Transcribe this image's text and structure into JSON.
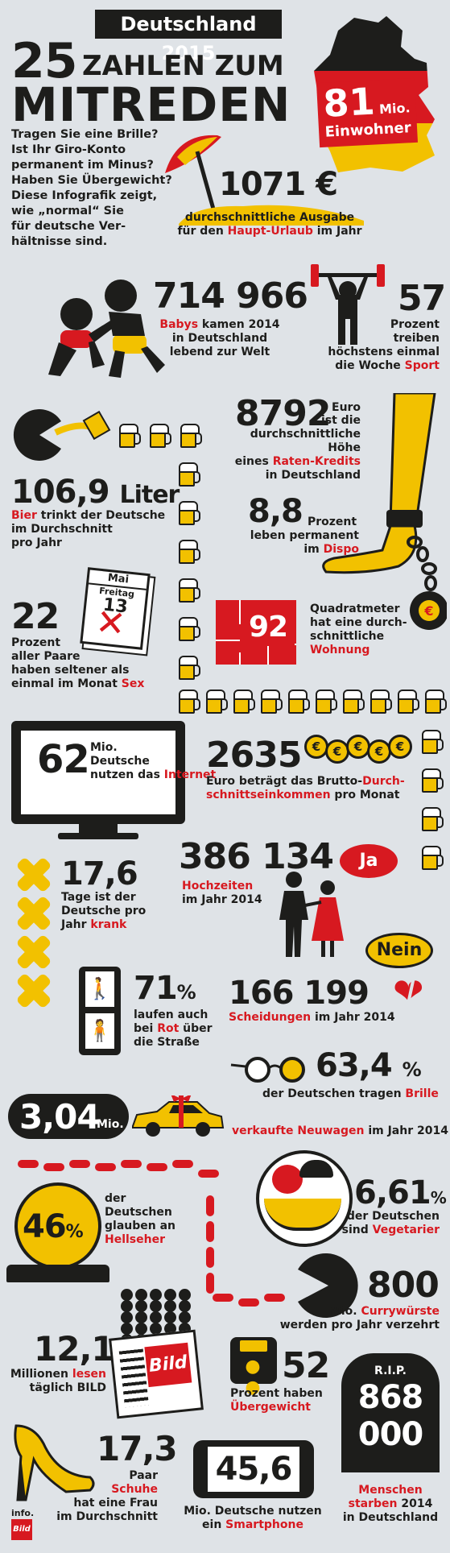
{
  "header": {
    "badge": "Deutschland 2015",
    "title_num": "25",
    "title_line1": "ZAHLEN ZUM",
    "title_line2": "MITREDEN"
  },
  "intro": [
    "Tragen Sie eine Brille?",
    "Ist Ihr Giro-Konto",
    "permanent im Minus?",
    "Haben Sie Übergewicht?",
    "Diese Infografik zeigt,",
    "wie „normal“ Sie",
    "für deutsche Ver-",
    "hältnisse sind."
  ],
  "population": {
    "value": "81",
    "unit": "Mio.",
    "label": "Einwohner"
  },
  "urlaub": {
    "value": "1071 €",
    "l1": "durchschnittliche Ausgabe",
    "l2_pre": "für den ",
    "l2_red": "Haupt-Urlaub",
    "l2_post": " im Jahr"
  },
  "babys": {
    "value": "714 966",
    "red": "Babys",
    "l1_post": " kamen 2014",
    "l2": "in Deutschland",
    "l3": "lebend zur Welt"
  },
  "sport": {
    "value": "57",
    "l1": "Prozent",
    "l2": "treiben",
    "l3": "höchstens einmal",
    "l4_pre": "die Woche ",
    "l4_red": "Sport"
  },
  "bier": {
    "value": "106,9",
    "unit": "Liter",
    "red": "Bier",
    "l1_post": " trinkt der Deutsche",
    "l2": "im Durchschnitt",
    "l3": "pro Jahr"
  },
  "kredit": {
    "value": "8792",
    "unit": "Euro",
    "l1": "ist die",
    "l2": "durchschnittliche Höhe",
    "l3_pre": "eines ",
    "l3_red": "Raten-Kredits",
    "l4": "in Deutschland"
  },
  "dispo": {
    "value": "8,8",
    "unit": "Prozent",
    "l1": "leben permanent",
    "l2_pre": "im ",
    "l2_red": "Dispo"
  },
  "sex": {
    "value": "22",
    "l1": "Prozent",
    "l2": "aller Paare",
    "l3": "haben seltener als",
    "l4_pre": "einmal im Monat ",
    "l4_red": "Sex",
    "cal_month": "Mai",
    "cal_day": "Freitag",
    "cal_date": "13"
  },
  "wohnung": {
    "value": "92",
    "l1": "Quadratmeter",
    "l2": "hat eine durch-",
    "l3": "schnittliche",
    "l4_red": "Wohnung"
  },
  "internet": {
    "value": "62",
    "unit": "Mio.",
    "l1": "Deutsche",
    "l2_pre": "nutzen das ",
    "l2_red": "Internet"
  },
  "einkommen": {
    "value": "2635",
    "l1_pre": "Euro beträgt das Brutto-",
    "l1_red": "Durch-",
    "l2_red": "schnittseinkommen",
    "l2_post": " pro Monat",
    "coin": "€"
  },
  "hochzeit": {
    "value": "386 134",
    "red": "Hochzeiten",
    "l2": "im Jahr 2014",
    "bubble": "Ja"
  },
  "krank": {
    "value": "17,6",
    "l1": "Tage ist der",
    "l2": "Deutsche pro",
    "l3_pre": "Jahr ",
    "l3_red": "krank"
  },
  "rot": {
    "value": "71",
    "unit": "%",
    "l1": "laufen auch",
    "l2_pre": "bei ",
    "l2_red": "Rot",
    "l2_post": " über",
    "l3": "die Straße"
  },
  "scheidung": {
    "value": "166 199",
    "red": "Scheidungen",
    "l1_post": " im Jahr 2014",
    "bubble": "Nein"
  },
  "brille": {
    "value": "63,4",
    "unit": "%",
    "l1_pre": "der Deutschen tragen ",
    "l1_red": "Brille"
  },
  "neuwagen": {
    "value": "3,04",
    "unit": "Mio.",
    "red": "verkaufte Neuwagen",
    "post": " im Jahr 2014"
  },
  "hellseher": {
    "value": "46",
    "unit": "%",
    "l1": "der",
    "l2": "Deutschen",
    "l3": "glauben an",
    "l4_red": "Hellseher"
  },
  "vegetarier": {
    "value": "6,61",
    "unit": "%",
    "l1": "der Deutschen",
    "l2_pre": "sind ",
    "l2_red": "Vegetarier"
  },
  "currywurst": {
    "value": "800",
    "l1_pre": "Mio. ",
    "l1_red": "Currywürste",
    "l2": "werden pro Jahr verzehrt"
  },
  "bild": {
    "value": "12,1",
    "l1_pre": "Millionen ",
    "l1_red": "lesen",
    "l2": "täglich BILD",
    "logo": "Bild"
  },
  "uebergewicht": {
    "value": "52",
    "l1": "Prozent haben",
    "l2_red": "Übergewicht"
  },
  "tod": {
    "rip": "R.I.P.",
    "v1": "868",
    "v2": "000",
    "l1_red": "Menschen",
    "l2_red": "starben",
    "l2_post": " 2014",
    "l3": "in Deutschland"
  },
  "schuhe": {
    "value": "17,3",
    "l1": "Paar",
    "l2_red": "Schuhe",
    "l3": "hat eine Frau",
    "l4": "im Durchschnitt"
  },
  "smartphone": {
    "value": "45,6",
    "l1": "Mio. Deutsche nutzen",
    "l2_pre": "ein ",
    "l2_red": "Smartphone"
  },
  "footer": {
    "l1": "info.",
    "l2": "Bild"
  },
  "colors": {
    "red": "#d71920",
    "yellow": "#f2c100",
    "black": "#1d1d1b",
    "bg": "#dfe3e7"
  }
}
